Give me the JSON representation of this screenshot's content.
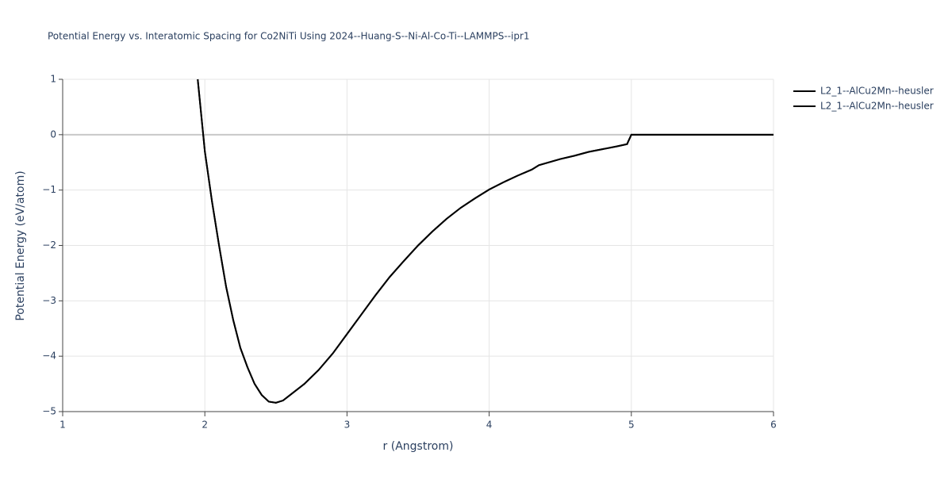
{
  "chart_data": {
    "type": "line",
    "title": "Potential Energy vs. Interatomic Spacing for Co2NiTi Using 2024--Huang-S--Ni-Al-Co-Ti--LAMMPS--ipr1",
    "x_label": "r (Angstrom)",
    "y_label": "Potential Energy (eV/atom)",
    "x": [
      1.95,
      2.0,
      2.05,
      2.1,
      2.15,
      2.2,
      2.25,
      2.3,
      2.35,
      2.4,
      2.45,
      2.5,
      2.55,
      2.6,
      2.7,
      2.8,
      2.9,
      3.0,
      3.1,
      3.2,
      3.3,
      3.4,
      3.5,
      3.6,
      3.7,
      3.8,
      3.9,
      4.0,
      4.1,
      4.2,
      4.3,
      4.35,
      4.5,
      4.6,
      4.7,
      4.8,
      4.9,
      4.97,
      5.0,
      6.0
    ],
    "series": [
      {
        "name": "L2_1--AlCu2Mn--heusler",
        "color": "#000000",
        "values": [
          1.0,
          -0.3,
          -1.2,
          -2.0,
          -2.75,
          -3.35,
          -3.85,
          -4.2,
          -4.5,
          -4.7,
          -4.82,
          -4.84,
          -4.8,
          -4.7,
          -4.5,
          -4.25,
          -3.95,
          -3.6,
          -3.25,
          -2.9,
          -2.57,
          -2.28,
          -2.0,
          -1.75,
          -1.52,
          -1.32,
          -1.15,
          -0.99,
          -0.86,
          -0.74,
          -0.63,
          -0.55,
          -0.44,
          -0.38,
          -0.31,
          -0.26,
          -0.21,
          -0.17,
          0,
          0
        ]
      },
      {
        "name": "L2_1--AlCu2Mn--heusler",
        "color": "#000000",
        "values": [
          1.0,
          -0.3,
          -1.2,
          -2.0,
          -2.75,
          -3.35,
          -3.85,
          -4.2,
          -4.5,
          -4.7,
          -4.82,
          -4.84,
          -4.8,
          -4.7,
          -4.5,
          -4.25,
          -3.95,
          -3.6,
          -3.25,
          -2.9,
          -2.57,
          -2.28,
          -2.0,
          -1.75,
          -1.52,
          -1.32,
          -1.15,
          -0.99,
          -0.86,
          -0.74,
          -0.63,
          -0.55,
          -0.44,
          -0.38,
          -0.31,
          -0.26,
          -0.21,
          -0.17,
          0,
          0
        ]
      }
    ],
    "xlim": [
      1,
      6
    ],
    "xticks": [
      1,
      2,
      3,
      4,
      5,
      6
    ],
    "ylim": [
      -5,
      1
    ],
    "yticks": [
      {
        "value": -5,
        "label": "−5"
      },
      {
        "value": -4,
        "label": "−4"
      },
      {
        "value": -3,
        "label": "−3"
      },
      {
        "value": -2,
        "label": "−2"
      },
      {
        "value": -1,
        "label": "−1"
      },
      0,
      1
    ],
    "grid": true,
    "legend": "top-right"
  }
}
